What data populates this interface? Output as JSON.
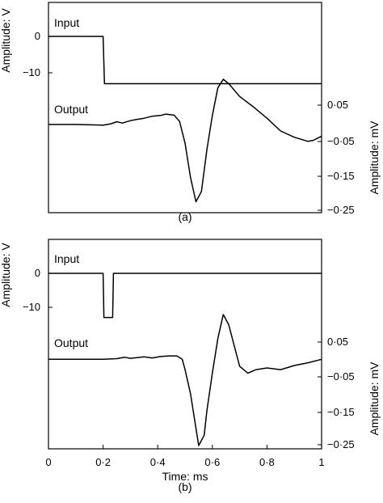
{
  "chart_data": [
    {
      "type": "line",
      "panel_label": "(a)",
      "left_axis": {
        "label": "Amplitude: V",
        "ticks": [
          {
            "value": 0,
            "label": "0"
          },
          {
            "value": -10,
            "label": "−10"
          }
        ]
      },
      "right_axis": {
        "label": "Amplitude: mV",
        "ticks": [
          {
            "value": 0.05,
            "label": "0·05"
          },
          {
            "value": -0.05,
            "label": "−0·05"
          },
          {
            "value": -0.15,
            "label": "−0·15"
          },
          {
            "value": -0.25,
            "label": "−0·25"
          }
        ]
      },
      "x_range": [
        0,
        1
      ],
      "series": [
        {
          "name": "Input",
          "units": "V",
          "points": [
            [
              0,
              0
            ],
            [
              0.2,
              0
            ],
            [
              0.205,
              -13
            ],
            [
              1,
              -13
            ]
          ]
        },
        {
          "name": "Output",
          "units": "mV",
          "points": [
            [
              0,
              -0.006
            ],
            [
              0.1,
              -0.006
            ],
            [
              0.2,
              -0.008
            ],
            [
              0.23,
              -0.004
            ],
            [
              0.25,
              0.002
            ],
            [
              0.27,
              -0.002
            ],
            [
              0.3,
              0.005
            ],
            [
              0.32,
              0.008
            ],
            [
              0.35,
              0.012
            ],
            [
              0.38,
              0.018
            ],
            [
              0.41,
              0.02
            ],
            [
              0.43,
              0.024
            ],
            [
              0.46,
              0.021
            ],
            [
              0.48,
              0.003
            ],
            [
              0.5,
              -0.06
            ],
            [
              0.52,
              -0.16
            ],
            [
              0.54,
              -0.23
            ],
            [
              0.56,
              -0.2
            ],
            [
              0.58,
              -0.08
            ],
            [
              0.6,
              0.02
            ],
            [
              0.62,
              0.1
            ],
            [
              0.64,
              0.125
            ],
            [
              0.66,
              0.112
            ],
            [
              0.7,
              0.075
            ],
            [
              0.75,
              0.045
            ],
            [
              0.8,
              0.012
            ],
            [
              0.85,
              -0.025
            ],
            [
              0.9,
              -0.043
            ],
            [
              0.95,
              -0.055
            ],
            [
              0.97,
              -0.052
            ],
            [
              1.0,
              -0.04
            ]
          ]
        }
      ]
    },
    {
      "type": "line",
      "panel_label": "(b)",
      "left_axis": {
        "label": "Amplitude: V",
        "ticks": [
          {
            "value": 0,
            "label": "0"
          },
          {
            "value": -10,
            "label": "−10"
          }
        ]
      },
      "right_axis": {
        "label": "Amplitude: mV",
        "ticks": [
          {
            "value": 0.05,
            "label": "0·05"
          },
          {
            "value": -0.05,
            "label": "−0·05"
          },
          {
            "value": -0.15,
            "label": "−0·15"
          },
          {
            "value": -0.25,
            "label": "−0·25"
          }
        ]
      },
      "x_axis": {
        "label": "Time: ms",
        "ticks": [
          {
            "value": 0,
            "label": "0"
          },
          {
            "value": 0.2,
            "label": "0·2"
          },
          {
            "value": 0.4,
            "label": "0·4"
          },
          {
            "value": 0.6,
            "label": "0·6"
          },
          {
            "value": 0.8,
            "label": "0·8"
          },
          {
            "value": 1,
            "label": "1"
          }
        ]
      },
      "x_range": [
        0,
        1
      ],
      "series": [
        {
          "name": "Input",
          "units": "V",
          "points": [
            [
              0,
              0
            ],
            [
              0.2,
              0
            ],
            [
              0.203,
              -13
            ],
            [
              0.235,
              -13
            ],
            [
              0.238,
              0
            ],
            [
              1,
              0
            ]
          ]
        },
        {
          "name": "Output",
          "units": "mV",
          "points": [
            [
              0,
              0
            ],
            [
              0.2,
              0
            ],
            [
              0.25,
              0.002
            ],
            [
              0.28,
              0.006
            ],
            [
              0.3,
              0.003
            ],
            [
              0.35,
              0.007
            ],
            [
              0.38,
              0.004
            ],
            [
              0.41,
              0.008
            ],
            [
              0.44,
              0.01
            ],
            [
              0.47,
              0.01
            ],
            [
              0.49,
              0.0
            ],
            [
              0.5,
              -0.03
            ],
            [
              0.52,
              -0.1
            ],
            [
              0.55,
              -0.25
            ],
            [
              0.57,
              -0.22
            ],
            [
              0.58,
              -0.15
            ],
            [
              0.6,
              -0.04
            ],
            [
              0.62,
              0.06
            ],
            [
              0.64,
              0.13
            ],
            [
              0.66,
              0.1
            ],
            [
              0.68,
              0.04
            ],
            [
              0.7,
              -0.02
            ],
            [
              0.73,
              -0.04
            ],
            [
              0.76,
              -0.03
            ],
            [
              0.8,
              -0.025
            ],
            [
              0.85,
              -0.03
            ],
            [
              0.9,
              -0.018
            ],
            [
              0.95,
              -0.01
            ],
            [
              1.0,
              0.0
            ]
          ]
        }
      ]
    }
  ]
}
